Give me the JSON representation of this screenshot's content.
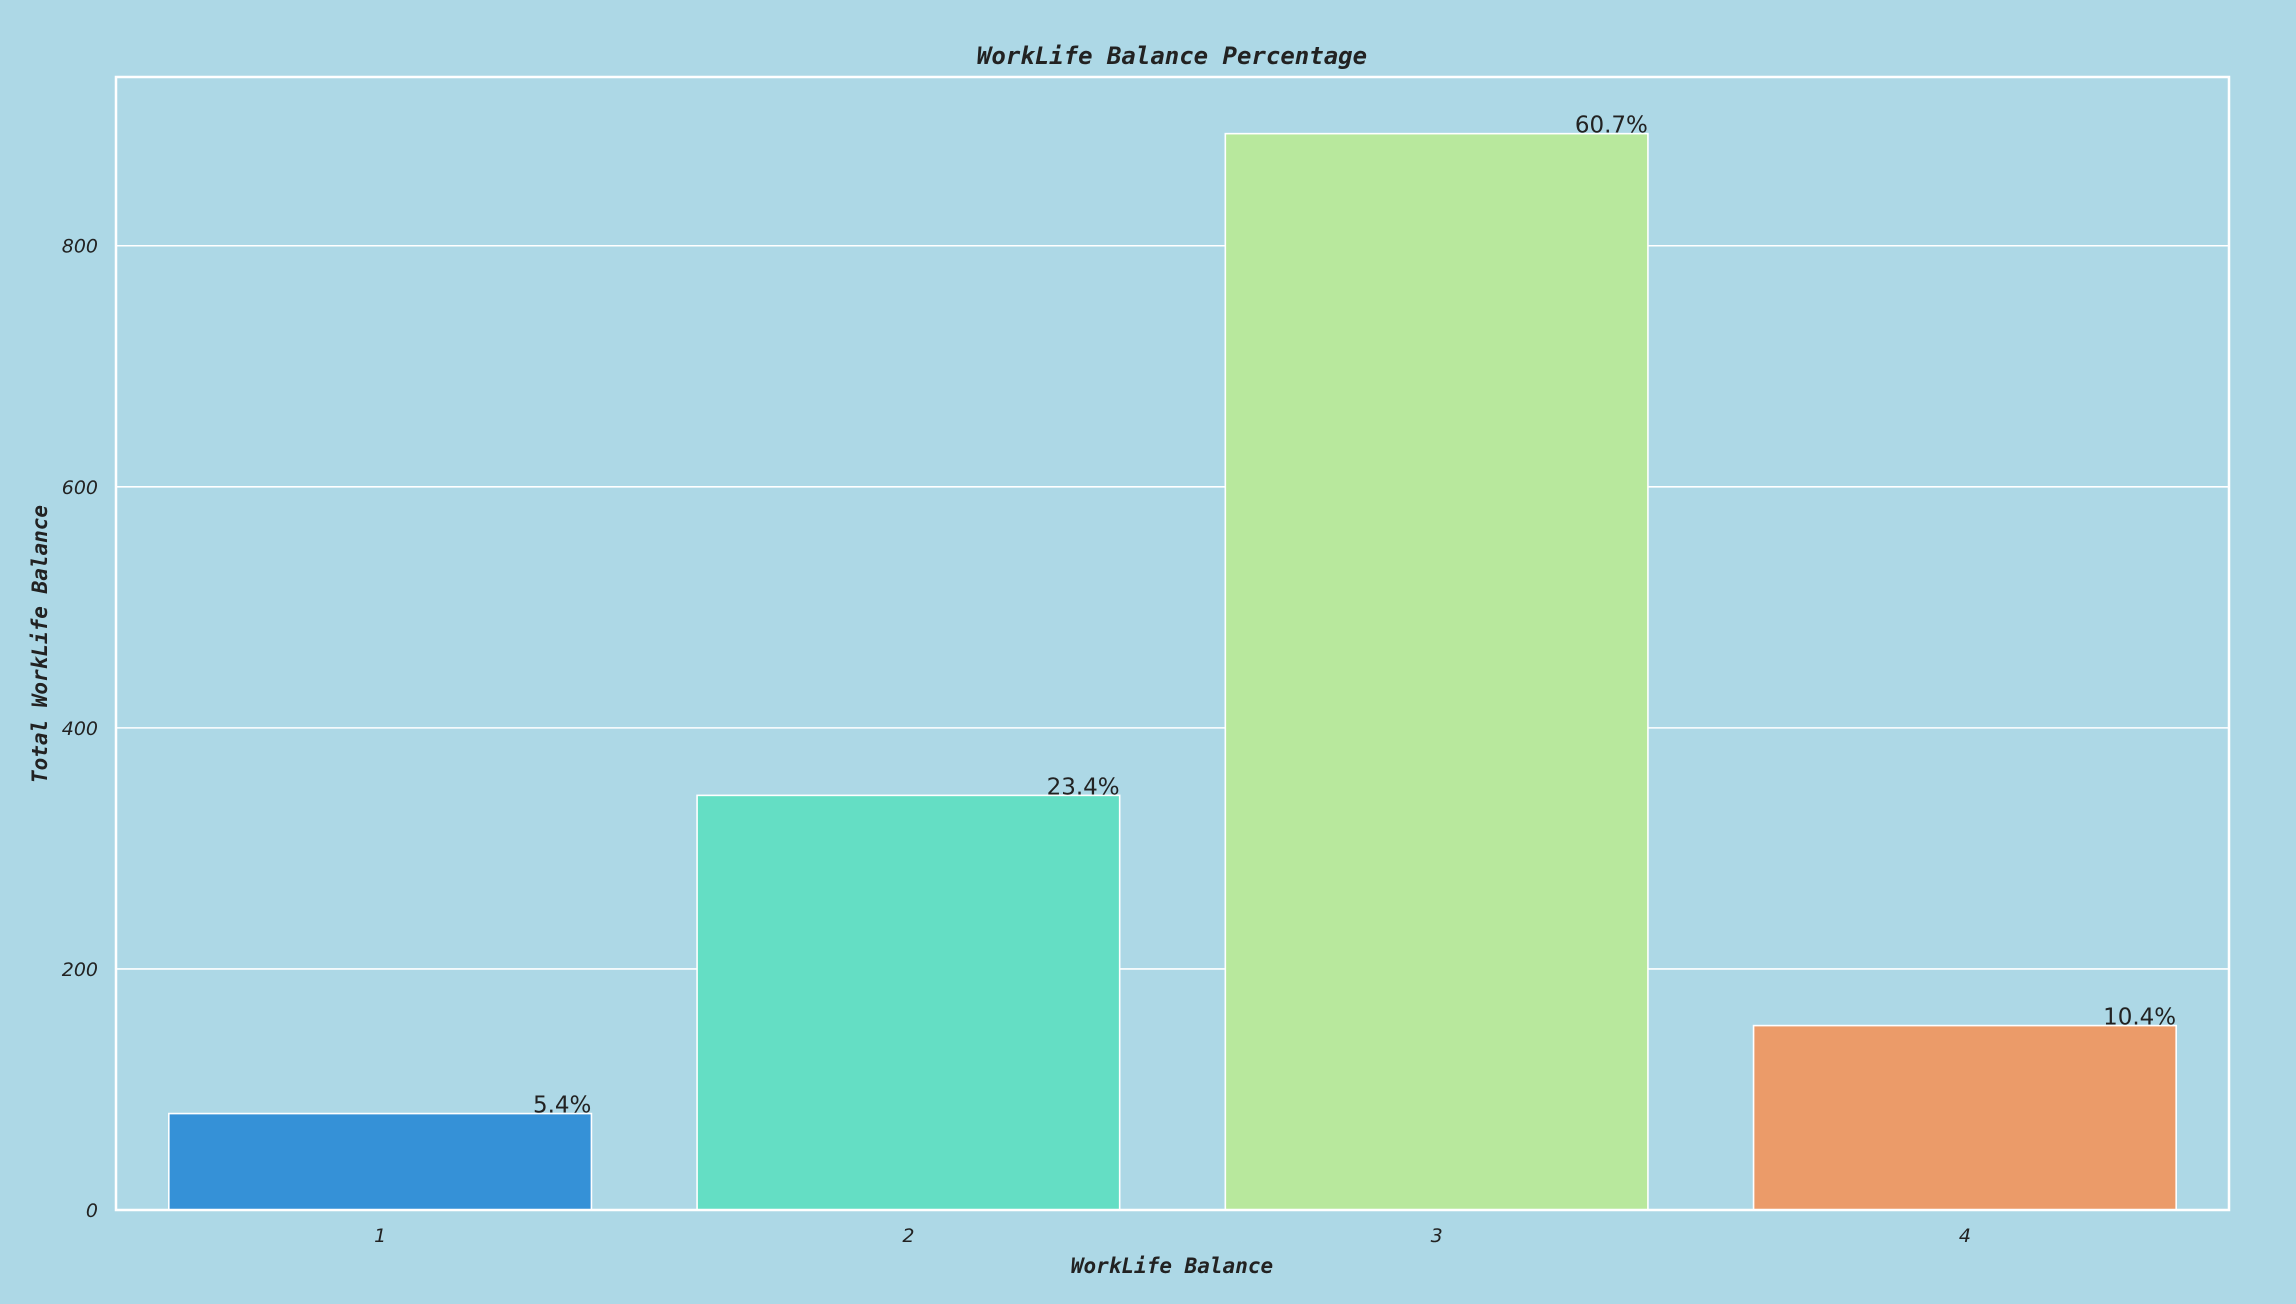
{
  "colors": {
    "background": "#add8e6",
    "grid": "#ffffff",
    "text": "#222222",
    "bar_edge": "#ffffff"
  },
  "chart_data": {
    "type": "bar",
    "title": "WorkLife Balance Percentage",
    "xlabel": "WorkLife Balance",
    "ylabel": "Total WorkLife Balance",
    "categories": [
      "1",
      "2",
      "3",
      "4"
    ],
    "values": [
      80,
      344,
      893,
      153
    ],
    "data_labels": [
      "5.4%",
      "23.4%",
      "60.7%",
      "10.4%"
    ],
    "bar_colors": [
      "#3591d7",
      "#64dec4",
      "#b8e89d",
      "#eb9b69"
    ],
    "ylim": [
      0,
      940
    ],
    "yticks": [
      0,
      200,
      400,
      600,
      800
    ],
    "ytick_labels": [
      "0",
      "200",
      "400",
      "600",
      "800"
    ],
    "grid": "horizontal"
  }
}
